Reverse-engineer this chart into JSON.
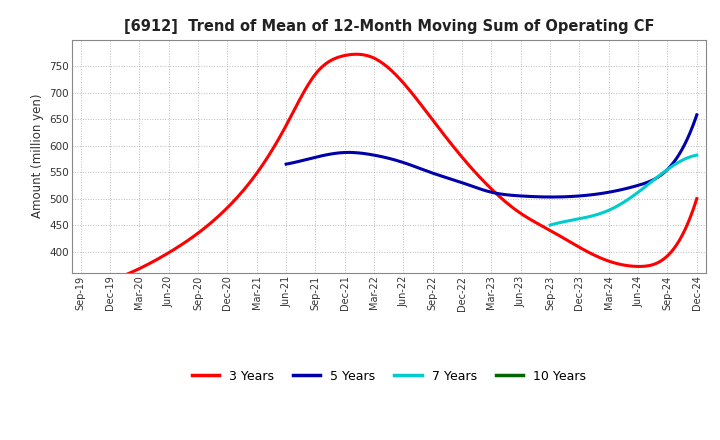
{
  "title": "[6912]  Trend of Mean of 12-Month Moving Sum of Operating CF",
  "ylabel": "Amount (million yen)",
  "ylim": [
    360,
    800
  ],
  "yticks": [
    400,
    450,
    500,
    550,
    600,
    650,
    700,
    750
  ],
  "bg_color": "#ffffff",
  "grid_color": "#aaaaaa",
  "legend": [
    "3 Years",
    "5 Years",
    "7 Years",
    "10 Years"
  ],
  "legend_colors": [
    "#ff0000",
    "#0000aa",
    "#00cccc",
    "#006600"
  ],
  "x_labels": [
    "Sep-19",
    "Dec-19",
    "Mar-20",
    "Jun-20",
    "Sep-20",
    "Dec-20",
    "Mar-21",
    "Jun-21",
    "Sep-21",
    "Dec-21",
    "Mar-22",
    "Jun-22",
    "Sep-22",
    "Dec-22",
    "Mar-23",
    "Jun-23",
    "Sep-23",
    "Dec-23",
    "Mar-24",
    "Jun-24",
    "Sep-24",
    "Dec-24"
  ],
  "series_3y": {
    "x_indices": [
      0,
      1,
      2,
      3,
      4,
      5,
      6,
      7,
      8,
      9,
      10,
      11,
      12,
      13,
      14,
      15,
      16,
      17,
      18,
      19,
      20,
      21
    ],
    "values": [
      330,
      345,
      368,
      398,
      435,
      483,
      548,
      638,
      735,
      770,
      765,
      718,
      648,
      578,
      518,
      472,
      440,
      408,
      382,
      372,
      392,
      500
    ],
    "color": "#ff0000",
    "lw": 2.2
  },
  "series_5y": {
    "x_indices": [
      7,
      8,
      9,
      10,
      11,
      12,
      13,
      14,
      15,
      16,
      17,
      18,
      19,
      20,
      21
    ],
    "values": [
      565,
      578,
      587,
      582,
      568,
      548,
      530,
      512,
      505,
      503,
      505,
      512,
      525,
      555,
      658
    ],
    "color": "#0000aa",
    "lw": 2.2
  },
  "series_7y": {
    "x_indices": [
      16,
      17,
      18,
      19,
      20,
      21
    ],
    "values": [
      450,
      462,
      478,
      512,
      555,
      582
    ],
    "color": "#00cccc",
    "lw": 2.2
  },
  "series_10y": {
    "x_indices": [],
    "values": [],
    "color": "#006600",
    "lw": 2.2
  }
}
